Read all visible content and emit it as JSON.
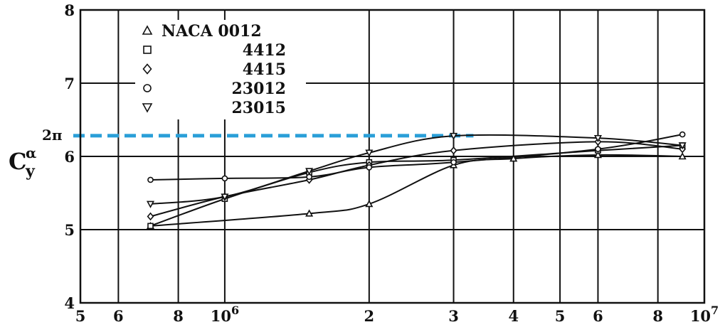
{
  "chart_data": {
    "type": "line",
    "title": "",
    "xlabel": "",
    "ylabel": "Cyα",
    "ylabel_main": "C",
    "ylabel_super": "α",
    "ylabel_sub": "y",
    "x_scale": "log",
    "xlim": [
      500000,
      10000000
    ],
    "ylim": [
      4,
      8
    ],
    "grid": true,
    "x_ticks": [
      {
        "value": 500000,
        "label": "5"
      },
      {
        "value": 600000,
        "label": "6"
      },
      {
        "value": 800000,
        "label": "8"
      },
      {
        "value": 1000000,
        "label": "10",
        "sup": "6"
      },
      {
        "value": 2000000,
        "label": "2"
      },
      {
        "value": 3000000,
        "label": "3"
      },
      {
        "value": 4000000,
        "label": "4"
      },
      {
        "value": 5000000,
        "label": "5"
      },
      {
        "value": 6000000,
        "label": "6"
      },
      {
        "value": 8000000,
        "label": "8"
      },
      {
        "value": 10000000,
        "label": "10",
        "sup": "7"
      }
    ],
    "y_ticks": [
      {
        "value": 4,
        "label": "4"
      },
      {
        "value": 5,
        "label": "5"
      },
      {
        "value": 6,
        "label": "6"
      },
      {
        "value": 7,
        "label": "7"
      },
      {
        "value": 8,
        "label": "8"
      }
    ],
    "reference_line": {
      "value": 6.283,
      "label": "2π",
      "color": "#2a9fd8",
      "style": "dashed",
      "x_end": 3300000
    },
    "legend": [
      {
        "label": "NACA 0012",
        "marker": "triangle-up"
      },
      {
        "label": "4412",
        "marker": "square"
      },
      {
        "label": "4415",
        "marker": "diamond"
      },
      {
        "label": "23012",
        "marker": "circle"
      },
      {
        "label": "23015",
        "marker": "triangle-down"
      }
    ],
    "series": [
      {
        "name": "NACA 0012",
        "marker": "triangle-up",
        "x": [
          700000,
          1500000,
          2000000,
          3000000,
          4000000,
          6000000,
          9000000
        ],
        "y": [
          5.05,
          5.22,
          5.35,
          5.88,
          5.97,
          6.02,
          6.0
        ]
      },
      {
        "name": "4412",
        "marker": "square",
        "x": [
          700000,
          1000000,
          1500000,
          2000000,
          3000000,
          6000000,
          9000000
        ],
        "y": [
          5.05,
          5.42,
          5.78,
          5.92,
          5.95,
          6.08,
          6.15
        ]
      },
      {
        "name": "4415",
        "marker": "diamond",
        "x": [
          700000,
          1000000,
          1500000,
          2000000,
          3000000,
          6000000,
          9000000
        ],
        "y": [
          5.18,
          5.45,
          5.68,
          5.88,
          6.08,
          6.2,
          6.1
        ]
      },
      {
        "name": "23012",
        "marker": "circle",
        "x": [
          700000,
          1000000,
          1500000,
          2000000,
          3000000,
          6000000,
          9000000
        ],
        "y": [
          5.68,
          5.7,
          5.72,
          5.85,
          5.92,
          6.1,
          6.3
        ]
      },
      {
        "name": "23015",
        "marker": "triangle-down",
        "x": [
          700000,
          1000000,
          1500000,
          2000000,
          3000000,
          6000000,
          9000000
        ],
        "y": [
          5.35,
          5.45,
          5.8,
          6.05,
          6.28,
          6.25,
          6.15
        ]
      }
    ]
  }
}
